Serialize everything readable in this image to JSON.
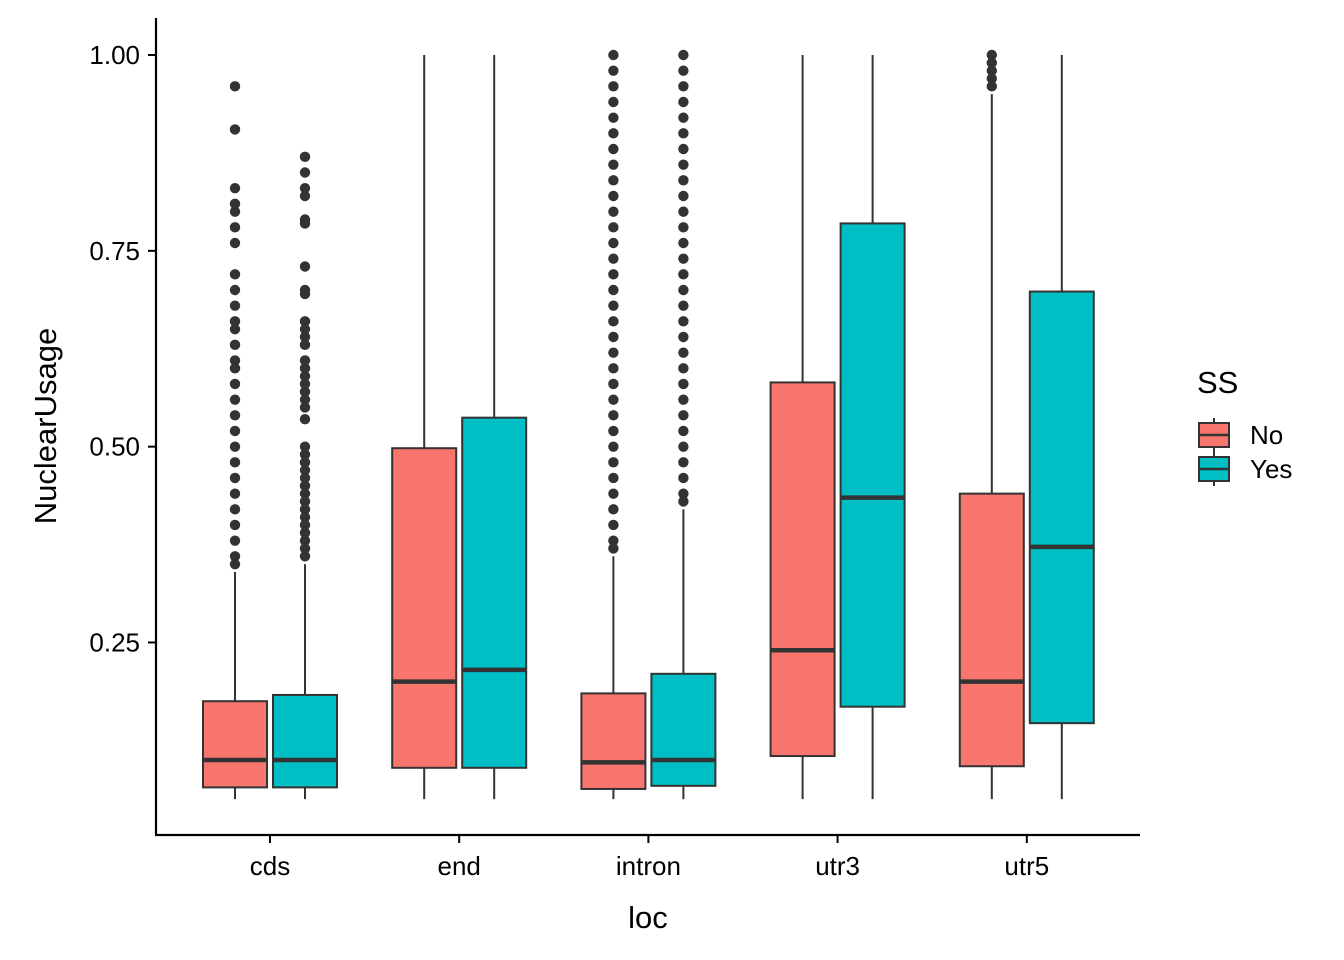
{
  "chart_data": {
    "type": "boxplot",
    "title": "",
    "xlabel": "loc",
    "ylabel": "NuclearUsage",
    "ylim": [
      0.0,
      1.045
    ],
    "yticks": [
      0.25,
      0.5,
      0.75,
      1.0
    ],
    "ytick_labels": [
      "0.25",
      "0.50",
      "0.75",
      "1.00"
    ],
    "categories": [
      "cds",
      "end",
      "intron",
      "utr3",
      "utr5"
    ],
    "grid": false,
    "legend": {
      "title": "SS",
      "position": "right",
      "entries": [
        {
          "label": "No",
          "color": "#F8766D"
        },
        {
          "label": "Yes",
          "color": "#00BFC4"
        }
      ]
    },
    "series": [
      {
        "name": "No",
        "color": "#F8766D",
        "boxes": [
          {
            "category": "cds",
            "whisker_low": 0.05,
            "q1": 0.065,
            "median": 0.1,
            "q3": 0.175,
            "whisker_high": 0.34,
            "outliers": [
              0.96,
              0.905,
              0.83,
              0.81,
              0.8,
              0.78,
              0.76,
              0.72,
              0.7,
              0.68,
              0.66,
              0.65,
              0.63,
              0.61,
              0.6,
              0.58,
              0.56,
              0.54,
              0.52,
              0.5,
              0.48,
              0.46,
              0.44,
              0.42,
              0.4,
              0.38,
              0.36,
              0.35
            ]
          },
          {
            "category": "end",
            "whisker_low": 0.05,
            "q1": 0.09,
            "median": 0.2,
            "q3": 0.498,
            "whisker_high": 1.0,
            "outliers": []
          },
          {
            "category": "intron",
            "whisker_low": 0.05,
            "q1": 0.063,
            "median": 0.097,
            "q3": 0.185,
            "whisker_high": 0.36,
            "outliers": [
              1.0,
              0.98,
              0.96,
              0.94,
              0.92,
              0.9,
              0.88,
              0.86,
              0.84,
              0.82,
              0.8,
              0.78,
              0.76,
              0.74,
              0.72,
              0.7,
              0.68,
              0.66,
              0.64,
              0.62,
              0.6,
              0.58,
              0.56,
              0.54,
              0.52,
              0.5,
              0.48,
              0.46,
              0.44,
              0.42,
              0.4,
              0.38,
              0.37
            ]
          },
          {
            "category": "utr3",
            "whisker_low": 0.05,
            "q1": 0.105,
            "median": 0.24,
            "q3": 0.582,
            "whisker_high": 1.0,
            "outliers": []
          },
          {
            "category": "utr5",
            "whisker_low": 0.05,
            "q1": 0.092,
            "median": 0.2,
            "q3": 0.44,
            "whisker_high": 0.95,
            "outliers": [
              1.0,
              0.99,
              0.98,
              0.97,
              0.96
            ]
          }
        ]
      },
      {
        "name": "Yes",
        "color": "#00BFC4",
        "boxes": [
          {
            "category": "cds",
            "whisker_low": 0.05,
            "q1": 0.065,
            "median": 0.1,
            "q3": 0.183,
            "whisker_high": 0.35,
            "outliers": [
              0.87,
              0.85,
              0.83,
              0.82,
              0.79,
              0.785,
              0.73,
              0.7,
              0.695,
              0.66,
              0.65,
              0.64,
              0.63,
              0.61,
              0.6,
              0.59,
              0.58,
              0.57,
              0.56,
              0.55,
              0.535,
              0.5,
              0.49,
              0.48,
              0.47,
              0.46,
              0.45,
              0.44,
              0.43,
              0.42,
              0.41,
              0.4,
              0.39,
              0.38,
              0.37,
              0.36
            ]
          },
          {
            "category": "end",
            "whisker_low": 0.05,
            "q1": 0.09,
            "median": 0.215,
            "q3": 0.537,
            "whisker_high": 1.0,
            "outliers": []
          },
          {
            "category": "intron",
            "whisker_low": 0.05,
            "q1": 0.067,
            "median": 0.1,
            "q3": 0.21,
            "whisker_high": 0.42,
            "outliers": [
              1.0,
              0.98,
              0.96,
              0.94,
              0.92,
              0.9,
              0.88,
              0.86,
              0.84,
              0.82,
              0.8,
              0.78,
              0.76,
              0.74,
              0.72,
              0.7,
              0.68,
              0.66,
              0.64,
              0.62,
              0.6,
              0.58,
              0.56,
              0.54,
              0.52,
              0.5,
              0.48,
              0.46,
              0.44,
              0.43
            ]
          },
          {
            "category": "utr3",
            "whisker_low": 0.05,
            "q1": 0.168,
            "median": 0.435,
            "q3": 0.785,
            "whisker_high": 1.0,
            "outliers": []
          },
          {
            "category": "utr5",
            "whisker_low": 0.05,
            "q1": 0.147,
            "median": 0.372,
            "q3": 0.698,
            "whisker_high": 1.0,
            "outliers": []
          }
        ]
      }
    ]
  }
}
